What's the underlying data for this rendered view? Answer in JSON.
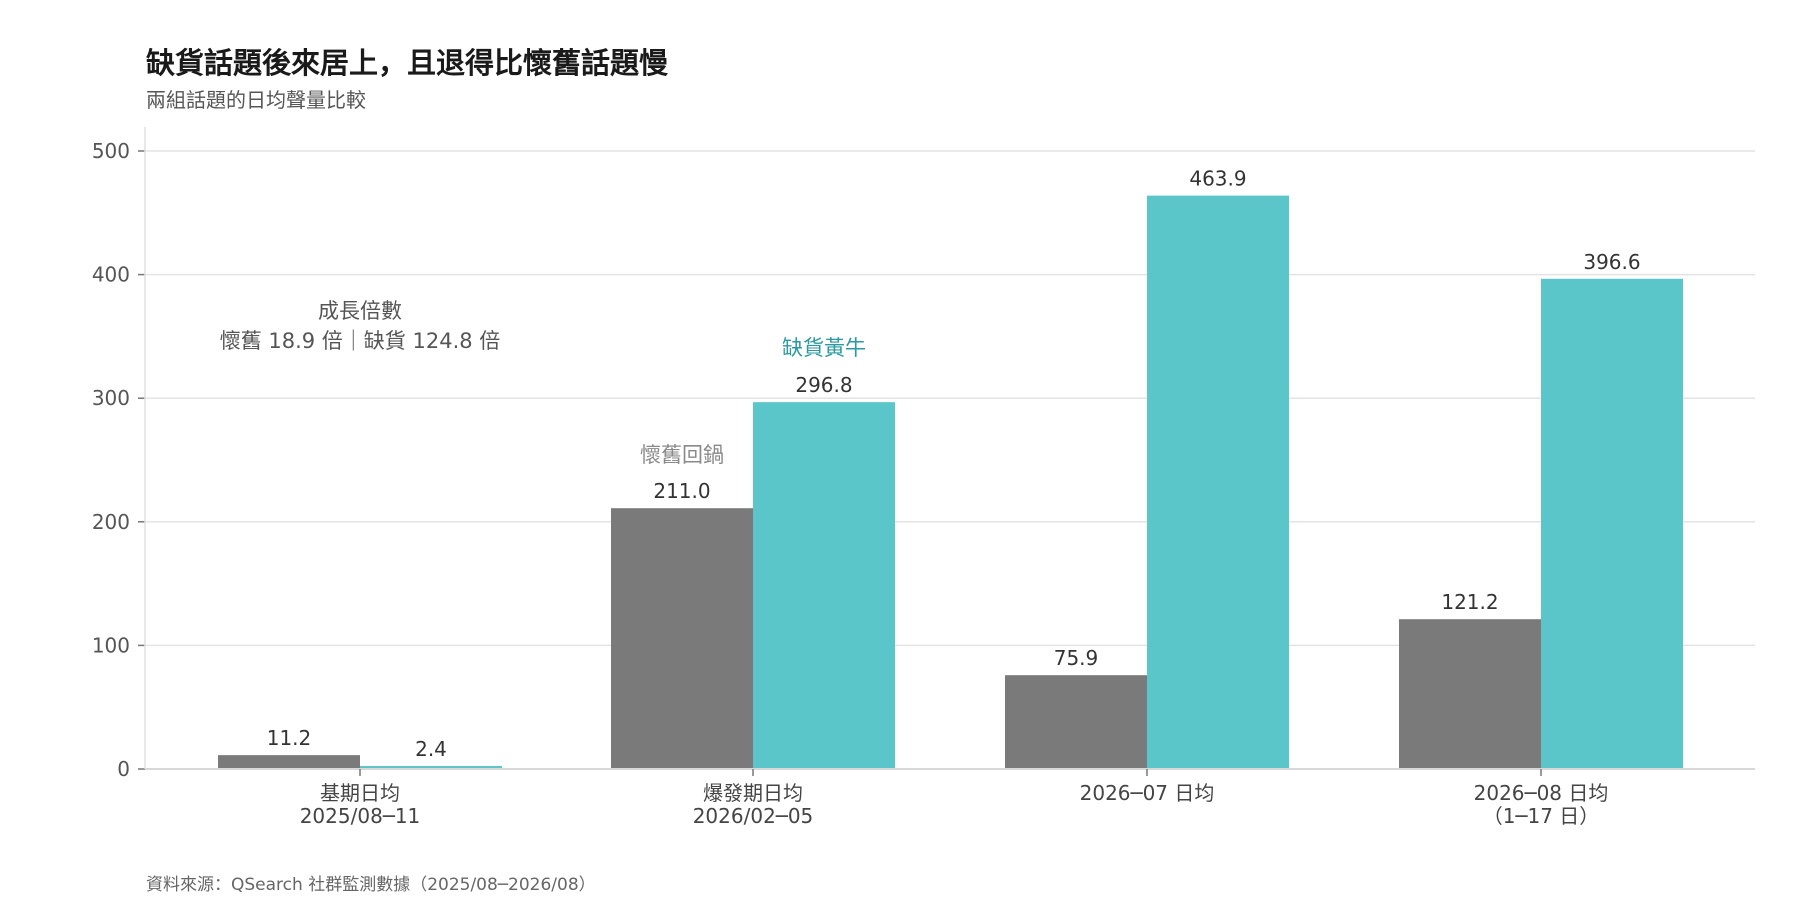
{
  "chart_data": {
    "type": "bar",
    "title": "缺貨話題後來居上，且退得比懷舊話題慢",
    "subtitle": "兩組話題的日均聲量比較",
    "xlabel": "",
    "ylabel": "",
    "ylim": [
      0,
      500
    ],
    "yticks": [
      0,
      100,
      200,
      300,
      400,
      500
    ],
    "grid": true,
    "categories": [
      [
        "基期日均",
        "2025/08─11"
      ],
      [
        "爆發期日均",
        "2026/02─05"
      ],
      [
        "2026─07 日均"
      ],
      [
        "2026─08 日均",
        "（1─17 日）"
      ]
    ],
    "series": [
      {
        "name": "懷舊回鍋",
        "color": "#7a7a7a",
        "values": [
          11.2,
          211.0,
          75.9,
          121.2
        ],
        "labels": [
          "11.2",
          "211.0",
          "75.9",
          "121.2"
        ]
      },
      {
        "name": "缺貨黃牛",
        "color": "#5bc6c9",
        "values": [
          2.4,
          296.8,
          463.9,
          396.6
        ],
        "labels": [
          "2.4",
          "296.8",
          "463.9",
          "396.6"
        ]
      }
    ],
    "annotations": {
      "growth_title": "成長倍數",
      "growth_text": "懷舊 18.9 倍｜缺貨 124.8 倍"
    },
    "source": "資料來源：QSearch 社群監測數據（2025/08─2026/08）"
  }
}
